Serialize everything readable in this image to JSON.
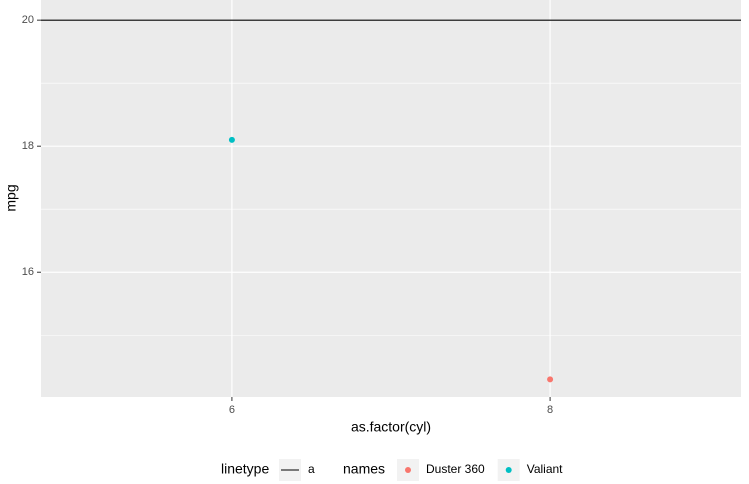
{
  "chart_data": {
    "type": "scatter",
    "x_label": "as.factor(cyl)",
    "y_label": "mpg",
    "categories": [
      "6",
      "8"
    ],
    "series": [
      {
        "name": "Duster 360",
        "color": "#f8766d",
        "x": [
          "8"
        ],
        "values": [
          14.3
        ]
      },
      {
        "name": "Valiant",
        "color": "#00bfc4",
        "x": [
          "6"
        ],
        "values": [
          18.1
        ]
      }
    ],
    "hlines": [
      {
        "name": "a",
        "value": 20,
        "color": "#000000"
      }
    ],
    "ylim": [
      14.02,
      20.32
    ],
    "yticks": [
      16,
      18,
      20
    ],
    "minor_yticks": [
      15,
      17,
      19
    ],
    "grid": true,
    "legend_titles": {
      "linetype": "linetype",
      "color": "names"
    },
    "legend_position": "bottom"
  }
}
